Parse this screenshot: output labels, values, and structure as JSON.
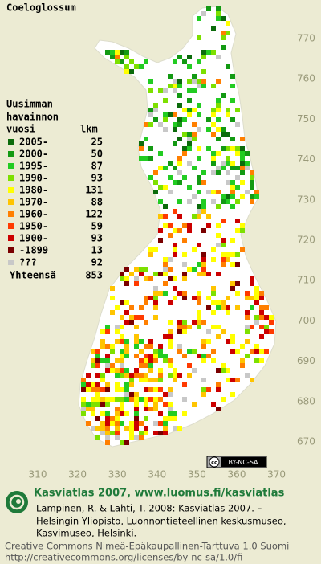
{
  "title": "Coeloglossum",
  "legend": {
    "heading": [
      "Uusimman",
      "havainnon",
      "vuosi"
    ],
    "count_heading": "lkm",
    "rows": [
      {
        "label": "2005-",
        "count": 25,
        "color": "#0b6b0b"
      },
      {
        "label": "2000-",
        "count": 50,
        "color": "#139a13"
      },
      {
        "label": "1995-",
        "count": 87,
        "color": "#22cc22"
      },
      {
        "label": "1990-",
        "count": 93,
        "color": "#7de000"
      },
      {
        "label": "1980-",
        "count": 131,
        "color": "#ffff00"
      },
      {
        "label": "1970-",
        "count": 88,
        "color": "#ffc400"
      },
      {
        "label": "1960-",
        "count": 122,
        "color": "#ff7f00"
      },
      {
        "label": "1950-",
        "count": 59,
        "color": "#ff3a00"
      },
      {
        "label": "1900-",
        "count": 93,
        "color": "#cc0000"
      },
      {
        "label": "-1899",
        "count": 13,
        "color": "#7a0000"
      },
      {
        "label": "???",
        "count": 92,
        "color": "#c8c8c8"
      }
    ],
    "total": {
      "label": "Yhteensä",
      "count": 853
    }
  },
  "map": {
    "y_labels": [
      770,
      760,
      750,
      740,
      730,
      720,
      710,
      700,
      690,
      680,
      670
    ],
    "x_labels": [
      310,
      320,
      330,
      340,
      350,
      360,
      370
    ]
  },
  "badge": {
    "icon": "cc",
    "text": "BY-NC-SA"
  },
  "footer": {
    "site": "Kasviatlas 2007, www.luomus.fi/kasviatlas",
    "citation": [
      "Lampinen, R. & Lahti, T. 2008: Kasviatlas 2007. –",
      "Helsingin Yliopisto, Luonnontieteellinen keskusmuseo,",
      "Kasvimuseo, Helsinki."
    ],
    "license": [
      "Creative Commons Nimeä-Epäkaupallinen-Tarttuva 1.0 Suomi",
      "http://creativecommons.org/licenses/by-nc-sa/1.0/fi"
    ]
  }
}
